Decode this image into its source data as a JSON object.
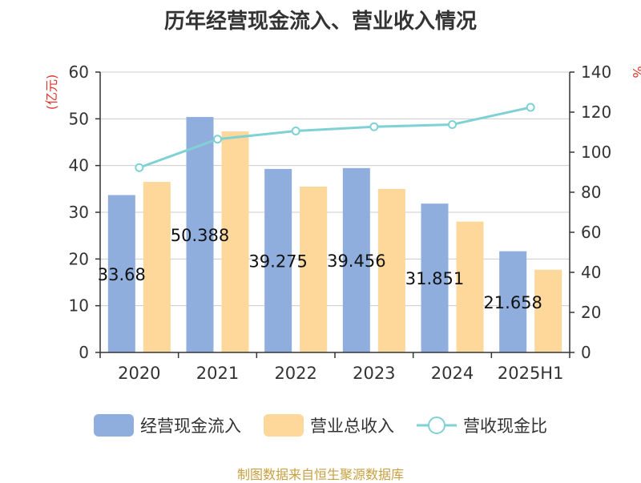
{
  "title": "历年经营现金流入、营业收入情况",
  "source": "制图数据来自恒生聚源数据库",
  "colors": {
    "cash_inflow": "#8faedd",
    "revenue": "#fdd89a",
    "ratio": "#7fd1d4",
    "axis": "#333333",
    "grid": "#cccccc",
    "unit_label": "#e0342b"
  },
  "legend": [
    "经营现金流入",
    "营业总收入",
    "营收现金比"
  ],
  "chart_data": {
    "type": "bar",
    "categories": [
      "2020",
      "2021",
      "2022",
      "2023",
      "2024",
      "2025H1"
    ],
    "series": [
      {
        "name": "经营现金流入",
        "type": "bar",
        "axis": "left",
        "values": [
          33.68,
          50.388,
          39.275,
          39.456,
          31.851,
          21.658
        ],
        "labels": [
          "33.68",
          "50.388",
          "39.275",
          "39.456",
          "31.851",
          "21.658"
        ]
      },
      {
        "name": "营业总收入",
        "type": "bar",
        "axis": "left",
        "values": [
          36.5,
          47.3,
          35.5,
          35.0,
          28.0,
          17.7
        ]
      },
      {
        "name": "营收现金比",
        "type": "line",
        "axis": "right",
        "values": [
          92.3,
          106.5,
          110.6,
          112.7,
          113.8,
          122.4
        ]
      }
    ],
    "left_axis": {
      "label": "(亿元)",
      "ylim": [
        0,
        60
      ],
      "ticks": [
        0,
        10,
        20,
        30,
        40,
        50,
        60
      ]
    },
    "right_axis": {
      "label": "%",
      "ylim": [
        0,
        140
      ],
      "ticks": [
        0,
        20,
        40,
        60,
        80,
        100,
        120,
        140
      ]
    },
    "grid": true,
    "legend_position": "bottom"
  }
}
